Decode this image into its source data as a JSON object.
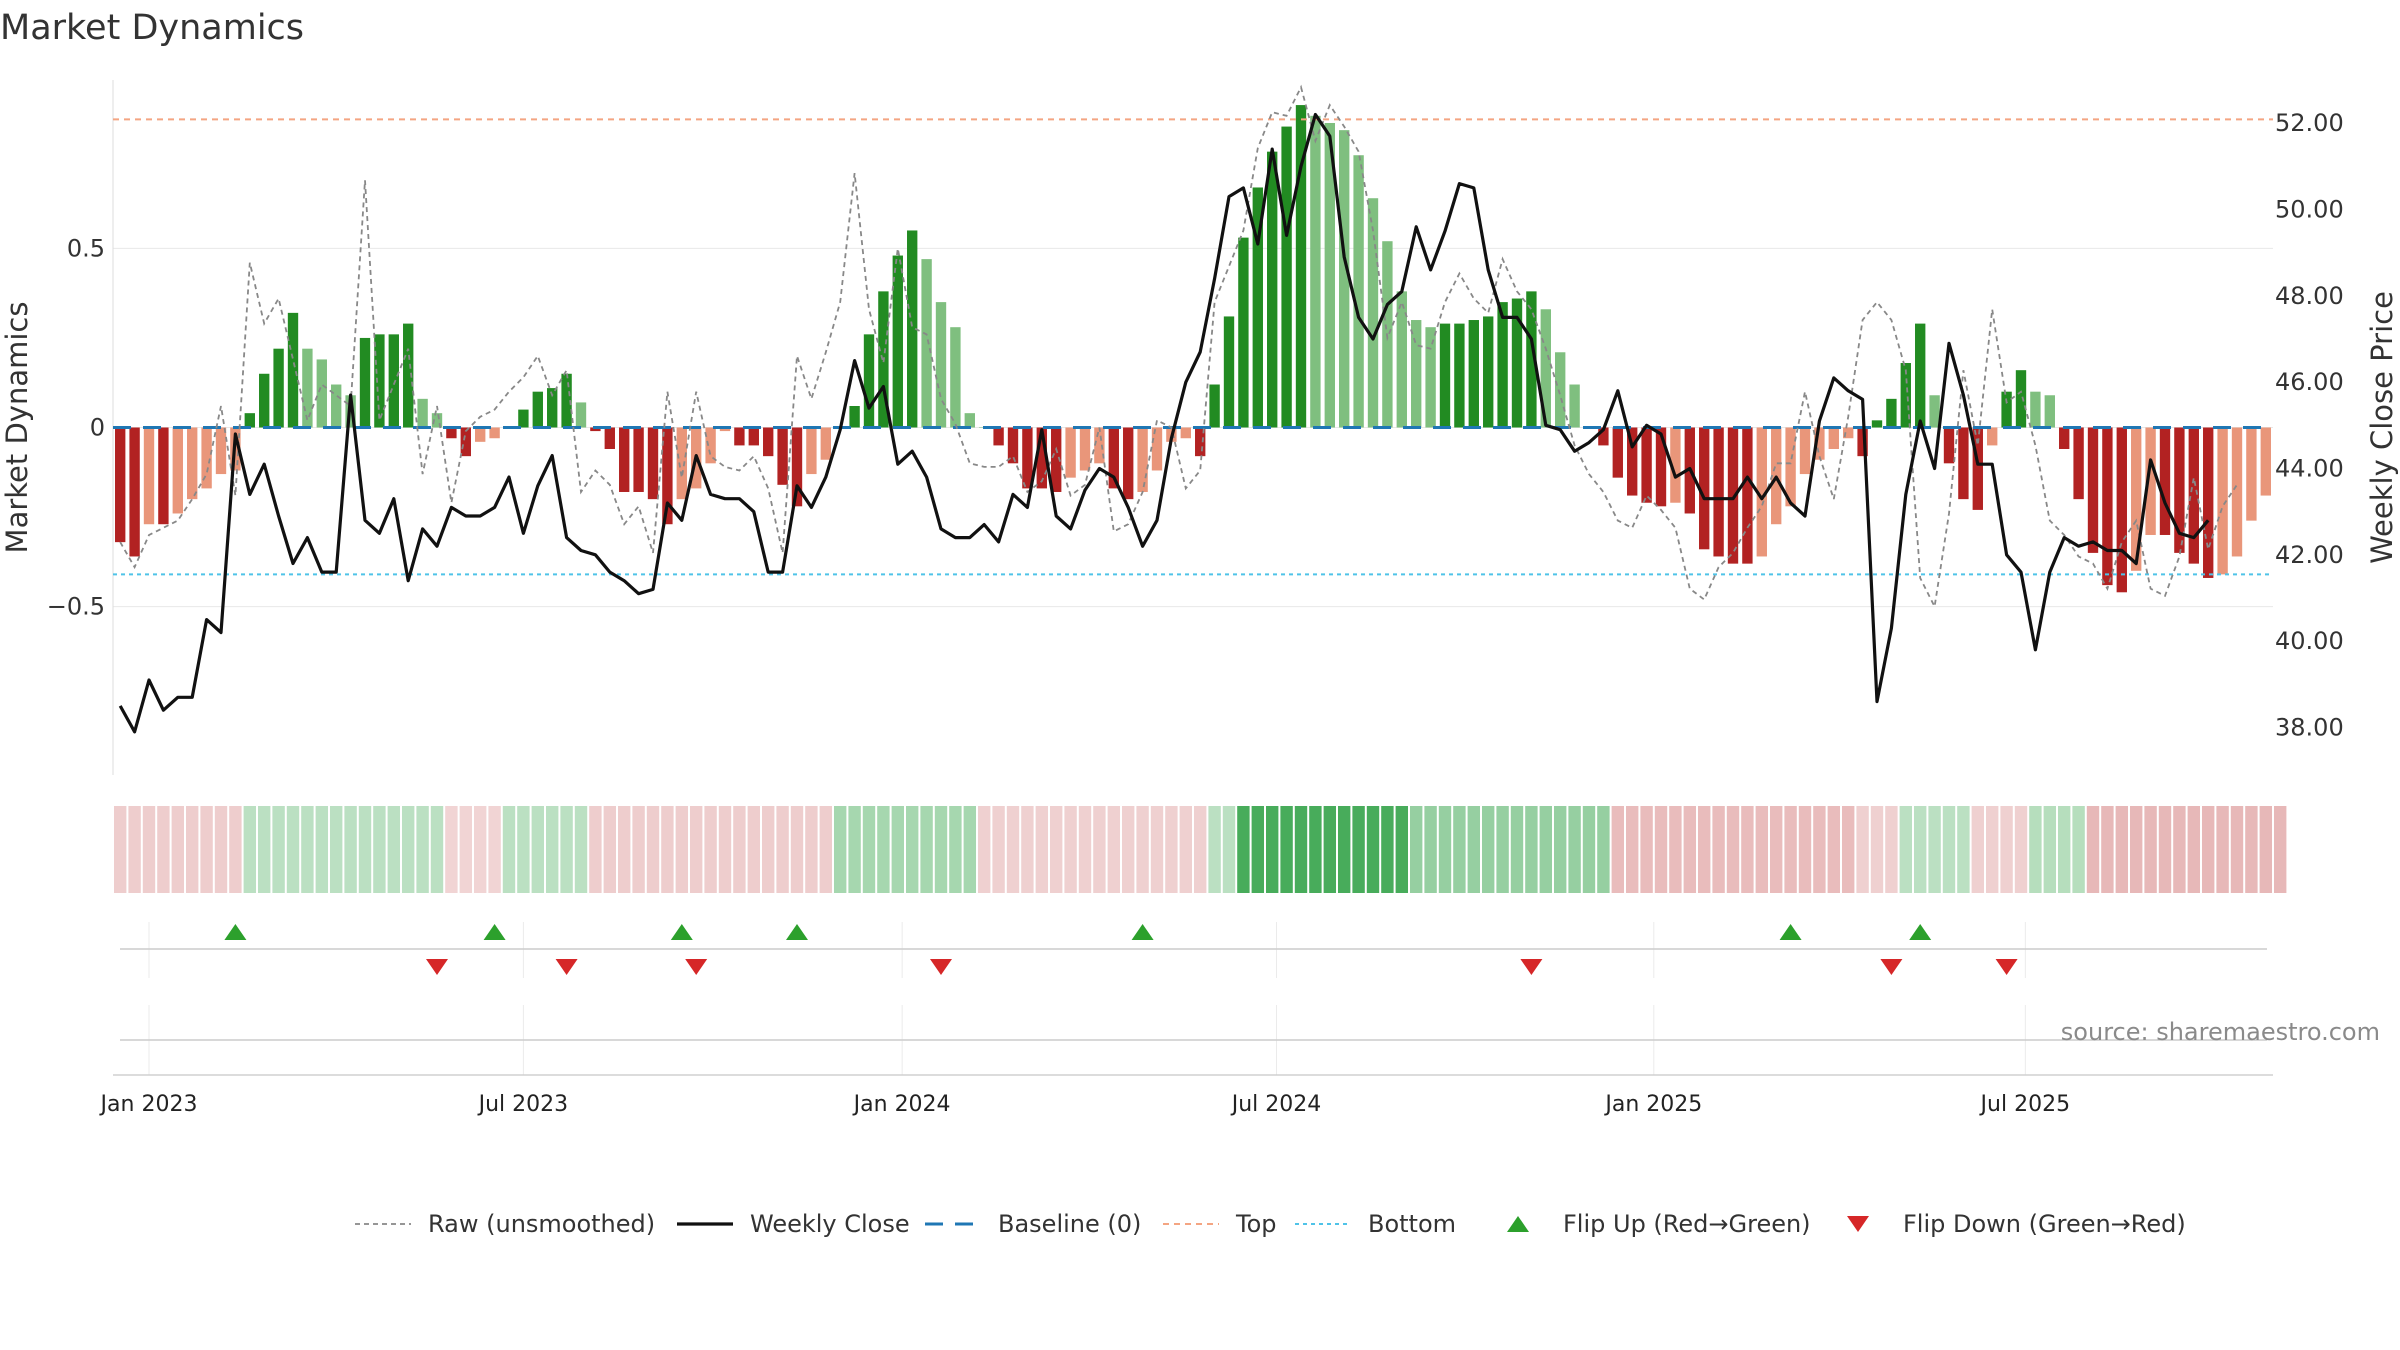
{
  "chart_data": {
    "type": "bar",
    "title": "Market Dynamics",
    "ylabel_left": "Market Dynamics",
    "ylabel_right": "Weekly Close Price",
    "ylim_left": [
      -0.97,
      0.97
    ],
    "ylim_right": [
      36.9,
      53.0
    ],
    "y_ticks_left": [
      {
        "value": 0.5,
        "label": "0.5"
      },
      {
        "value": 0,
        "label": "0"
      },
      {
        "value": -0.5,
        "label": "−0.5"
      }
    ],
    "y_ticks_right": [
      "38.00",
      "40.00",
      "42.00",
      "44.00",
      "46.00",
      "48.00",
      "50.00",
      "52.00"
    ],
    "x_ticks": [
      {
        "label": "Jan 2023",
        "week": 2.5
      },
      {
        "label": "Jul 2023",
        "week": 28.5
      },
      {
        "label": "Jan 2024",
        "week": 54.8
      },
      {
        "label": "Jul 2024",
        "week": 80.8
      },
      {
        "label": "Jan 2025",
        "week": 107.0
      },
      {
        "label": "Jul 2025",
        "week": 132.8
      }
    ],
    "top_line": 0.86,
    "bottom_line": -0.41,
    "baseline": 0,
    "bar_colors": {
      "dark_green": "#228b22",
      "light_green": "#7fbf7f",
      "dark_red": "#b22222",
      "light_red": "#e9967a"
    },
    "series": [
      {
        "name": "Market Dynamics",
        "values": [
          -0.32,
          -0.36,
          -0.27,
          -0.27,
          -0.24,
          -0.2,
          -0.17,
          -0.13,
          -0.12,
          0.04,
          0.15,
          0.22,
          0.32,
          0.22,
          0.19,
          0.12,
          0.09,
          0.25,
          0.26,
          0.26,
          0.29,
          0.08,
          0.04,
          -0.03,
          -0.08,
          -0.04,
          -0.03,
          0.0,
          0.05,
          0.1,
          0.11,
          0.15,
          0.07,
          -0.01,
          -0.06,
          -0.18,
          -0.18,
          -0.2,
          -0.27,
          -0.2,
          -0.17,
          -0.1,
          -0.01,
          -0.05,
          -0.05,
          -0.08,
          -0.16,
          -0.22,
          -0.13,
          -0.09,
          0.0,
          0.06,
          0.26,
          0.38,
          0.48,
          0.55,
          0.47,
          0.35,
          0.28,
          0.04,
          0.0,
          -0.05,
          -0.1,
          -0.17,
          -0.17,
          -0.18,
          -0.14,
          -0.12,
          -0.1,
          -0.17,
          -0.2,
          -0.18,
          -0.12,
          -0.04,
          -0.03,
          -0.08,
          0.12,
          0.31,
          0.53,
          0.67,
          0.77,
          0.84,
          0.9,
          0.87,
          0.85,
          0.83,
          0.76,
          0.64,
          0.52,
          0.38,
          0.3,
          0.28,
          0.29,
          0.29,
          0.3,
          0.31,
          0.35,
          0.36,
          0.38,
          0.33,
          0.21,
          0.12,
          0.0,
          -0.05,
          -0.14,
          -0.19,
          -0.21,
          -0.22,
          -0.21,
          -0.24,
          -0.34,
          -0.36,
          -0.38,
          -0.38,
          -0.36,
          -0.27,
          -0.22,
          -0.13,
          -0.09,
          -0.06,
          -0.03,
          -0.08,
          0.02,
          0.08,
          0.18,
          0.29,
          0.09,
          -0.1,
          -0.2,
          -0.23,
          -0.05,
          0.1,
          0.16,
          0.1,
          0.09,
          -0.06,
          -0.2,
          -0.35,
          -0.44,
          -0.46,
          -0.4,
          -0.3,
          -0.3,
          -0.35,
          -0.38,
          -0.42,
          -0.41,
          -0.36,
          -0.26,
          -0.19
        ]
      },
      {
        "name": "Raw (unsmoothed)",
        "values": [
          -0.32,
          -0.39,
          -0.3,
          -0.28,
          -0.26,
          -0.2,
          -0.13,
          0.06,
          -0.19,
          0.46,
          0.29,
          0.36,
          0.19,
          0.02,
          0.12,
          0.09,
          0.06,
          0.69,
          0.02,
          0.12,
          0.22,
          -0.13,
          0.06,
          -0.21,
          -0.01,
          0.03,
          0.05,
          0.1,
          0.14,
          0.2,
          0.09,
          0.16,
          -0.18,
          -0.12,
          -0.16,
          -0.27,
          -0.22,
          -0.35,
          0.1,
          -0.14,
          0.1,
          -0.08,
          -0.11,
          -0.12,
          -0.08,
          -0.17,
          -0.35,
          0.2,
          0.08,
          0.21,
          0.35,
          0.71,
          0.33,
          0.18,
          0.5,
          0.28,
          0.26,
          0.08,
          0.01,
          -0.1,
          -0.11,
          -0.11,
          -0.08,
          -0.18,
          -0.15,
          -0.06,
          -0.19,
          -0.16,
          0.0,
          -0.29,
          -0.27,
          -0.18,
          0.02,
          0.0,
          -0.17,
          -0.12,
          0.35,
          0.45,
          0.55,
          0.78,
          0.88,
          0.87,
          0.95,
          0.8,
          0.9,
          0.84,
          0.77,
          0.55,
          0.25,
          0.35,
          0.23,
          0.22,
          0.35,
          0.43,
          0.36,
          0.32,
          0.47,
          0.38,
          0.33,
          0.22,
          0.09,
          -0.05,
          -0.13,
          -0.18,
          -0.26,
          -0.28,
          -0.19,
          -0.23,
          -0.28,
          -0.45,
          -0.48,
          -0.39,
          -0.35,
          -0.28,
          -0.22,
          -0.1,
          -0.1,
          0.1,
          -0.08,
          -0.2,
          0.03,
          0.3,
          0.35,
          0.3,
          0.16,
          -0.42,
          -0.5,
          -0.24,
          0.16,
          -0.05,
          0.33,
          0.07,
          0.1,
          -0.05,
          -0.26,
          -0.3,
          -0.36,
          -0.38,
          -0.45,
          -0.32,
          -0.26,
          -0.45,
          -0.47,
          -0.36,
          -0.14,
          -0.34,
          -0.22,
          -0.16
        ]
      },
      {
        "name": "Weekly Close",
        "values": [
          38.5,
          37.9,
          39.1,
          38.4,
          38.7,
          38.7,
          40.5,
          40.2,
          44.8,
          43.4,
          44.1,
          42.9,
          41.8,
          42.4,
          41.6,
          41.6,
          45.7,
          42.8,
          42.5,
          43.3,
          41.4,
          42.6,
          42.2,
          43.1,
          42.9,
          42.9,
          43.1,
          43.8,
          42.5,
          43.6,
          44.3,
          42.4,
          42.1,
          42.0,
          41.6,
          41.4,
          41.1,
          41.2,
          43.2,
          42.8,
          44.3,
          43.4,
          43.3,
          43.3,
          43.0,
          41.6,
          41.6,
          43.6,
          43.1,
          43.8,
          44.9,
          46.5,
          45.4,
          45.9,
          44.1,
          44.4,
          43.8,
          42.6,
          42.4,
          42.4,
          42.7,
          42.3,
          43.4,
          43.1,
          44.9,
          42.9,
          42.6,
          43.5,
          44.0,
          43.8,
          43.1,
          42.2,
          42.8,
          44.7,
          46.0,
          46.7,
          48.4,
          50.3,
          50.5,
          49.2,
          51.4,
          49.4,
          51.0,
          52.2,
          51.7,
          48.9,
          47.5,
          47.0,
          47.8,
          48.1,
          49.6,
          48.6,
          49.5,
          50.6,
          50.5,
          48.6,
          47.5,
          47.5,
          47.0,
          45.0,
          44.9,
          44.4,
          44.6,
          44.9,
          45.8,
          44.5,
          45.0,
          44.8,
          43.8,
          44.0,
          43.3,
          43.3,
          43.3,
          43.8,
          43.3,
          43.8,
          43.2,
          42.9,
          45.1,
          46.1,
          45.8,
          45.6,
          38.6,
          40.3,
          43.4,
          45.1,
          44.0,
          46.9,
          45.7,
          44.1,
          44.1,
          42.0,
          41.6,
          39.8,
          41.6,
          42.4,
          42.2,
          42.3,
          42.1,
          42.1,
          41.8,
          44.2,
          43.2,
          42.5,
          42.4,
          42.8
        ]
      }
    ],
    "regime_strip": [
      -0.07,
      -0.07,
      -0.07,
      -0.07,
      -0.07,
      -0.07,
      -0.07,
      -0.07,
      -0.07,
      0.06,
      0.06,
      0.06,
      0.06,
      0.06,
      0.06,
      0.06,
      0.06,
      0.06,
      0.06,
      0.06,
      0.06,
      0.06,
      0.06,
      -0.03,
      -0.03,
      -0.03,
      -0.03,
      0.06,
      0.06,
      0.06,
      0.06,
      0.06,
      0.06,
      -0.07,
      -0.07,
      -0.07,
      -0.07,
      -0.07,
      -0.07,
      -0.07,
      -0.07,
      -0.07,
      -0.07,
      -0.07,
      -0.07,
      -0.07,
      -0.07,
      -0.07,
      -0.07,
      -0.07,
      0.14,
      0.14,
      0.14,
      0.14,
      0.14,
      0.14,
      0.14,
      0.14,
      0.14,
      0.14,
      -0.05,
      -0.05,
      -0.05,
      -0.05,
      -0.05,
      -0.05,
      -0.05,
      -0.05,
      -0.05,
      -0.05,
      -0.05,
      -0.05,
      -0.05,
      -0.05,
      -0.05,
      -0.05,
      0.06,
      0.06,
      0.5,
      0.5,
      0.5,
      0.5,
      0.5,
      0.5,
      0.5,
      0.5,
      0.5,
      0.5,
      0.5,
      0.5,
      0.2,
      0.2,
      0.2,
      0.2,
      0.2,
      0.2,
      0.2,
      0.2,
      0.2,
      0.2,
      0.2,
      0.2,
      0.2,
      0.2,
      -0.16,
      -0.16,
      -0.16,
      -0.16,
      -0.16,
      -0.16,
      -0.16,
      -0.16,
      -0.16,
      -0.16,
      -0.16,
      -0.16,
      -0.16,
      -0.16,
      -0.16,
      -0.16,
      -0.16,
      -0.05,
      -0.05,
      -0.05,
      0.06,
      0.06,
      0.06,
      0.06,
      0.06,
      -0.05,
      -0.05,
      -0.05,
      -0.05,
      0.08,
      0.08,
      0.08,
      0.08,
      -0.18,
      -0.18,
      -0.18,
      -0.18,
      -0.18,
      -0.18,
      -0.18,
      -0.18,
      -0.18,
      -0.18,
      -0.18,
      -0.18,
      -0.18,
      -0.18
    ],
    "flips_up": [
      8.5,
      26.5,
      39.5,
      47.5,
      71.5,
      116.5,
      125.5
    ],
    "flips_down": [
      22.5,
      31.5,
      40.5,
      57.5,
      98.5,
      123.5,
      131.5
    ],
    "legend": [
      "Raw (unsmoothed)",
      "Weekly Close",
      "Baseline (0)",
      "Top",
      "Bottom",
      "Flip Up (Red→Green)",
      "Flip Down (Green→Red)"
    ],
    "legend_placement": "bottom-center",
    "source": "source: sharemaestro.com",
    "grid": true
  }
}
